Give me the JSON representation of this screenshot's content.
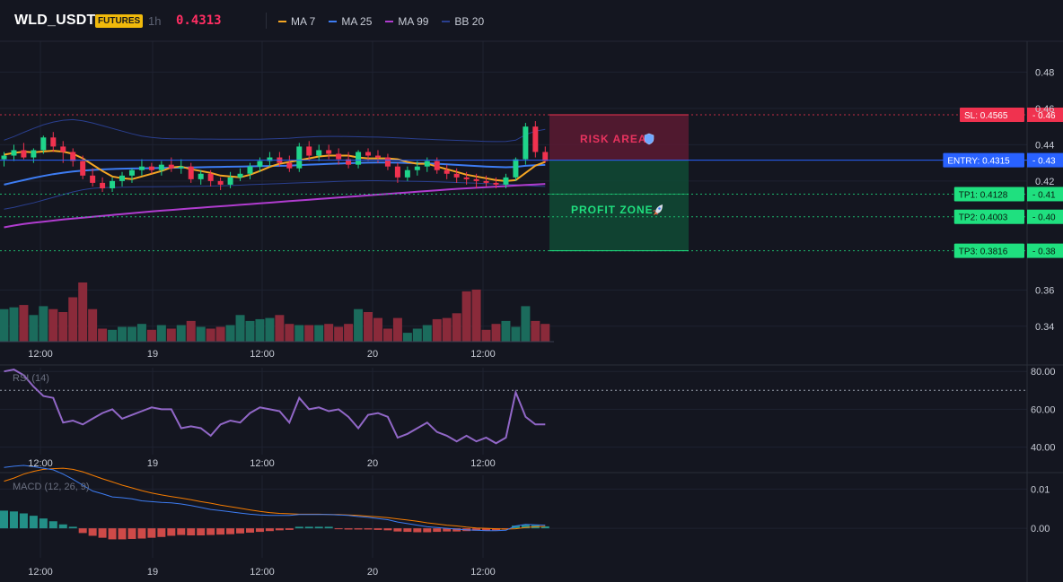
{
  "header": {
    "symbol": "WLD_USDT",
    "badge": "FUTURES",
    "timeframe": "1h",
    "last_price": "0.4313",
    "legend": [
      {
        "label": "MA 7",
        "color": "#f5a623"
      },
      {
        "label": "MA 25",
        "color": "#3d7cf2"
      },
      {
        "label": "MA 99",
        "color": "#b03ccf"
      },
      {
        "label": "BB 20",
        "color": "#2a3f8f"
      }
    ]
  },
  "colors": {
    "background": "#141620",
    "up": "#1fd48a",
    "down": "#f0324f",
    "vol_up": "#1b6b5c",
    "vol_down": "#8a2a3a",
    "rsi": "#9167c7",
    "macd": "#3d7cf2",
    "signal": "#f57c00",
    "hist_up": "#26a69a",
    "hist_down": "#ef5350"
  },
  "price_axis": {
    "ticks": [
      "0.48",
      "0.46",
      "0.44",
      "0.42",
      "0.36",
      "0.34"
    ],
    "range": [
      0.332,
      0.497
    ]
  },
  "time_axis": [
    "12:00",
    "19",
    "12:00",
    "20",
    "12:00"
  ],
  "zones": {
    "risk_label": "RISK AREA",
    "profit_label": "PROFIT ZONE",
    "risk_icon": "shield-icon",
    "profit_icon": "rocket-icon"
  },
  "levels": [
    {
      "id": "sl",
      "tag": "SL: 0.4565",
      "value": 0.4565,
      "axis": "0.46",
      "color": "#f0324f",
      "text": "#ffffff"
    },
    {
      "id": "entry",
      "tag": "ENTRY: 0.4315",
      "value": 0.4315,
      "axis": "0.43",
      "color": "#2962ff",
      "text": "#ffffff"
    },
    {
      "id": "tp1",
      "tag": "TP1: 0.4128",
      "value": 0.4128,
      "axis": "0.41",
      "color": "#1fe07f",
      "text": "#0a1a10"
    },
    {
      "id": "tp2",
      "tag": "TP2: 0.4003",
      "value": 0.4003,
      "axis": "0.40",
      "color": "#1fe07f",
      "text": "#0a1a10"
    },
    {
      "id": "tp3",
      "tag": "TP3: 0.3816",
      "value": 0.3816,
      "axis": "0.38",
      "color": "#1fe07f",
      "text": "#0a1a10"
    }
  ],
  "rsi": {
    "label": "RSI (14)",
    "ticks": [
      "80.00",
      "60.00",
      "40.00"
    ],
    "range": [
      36,
      82
    ],
    "overbought": 70,
    "values": [
      80,
      81,
      78,
      72,
      67,
      66,
      53,
      54,
      52,
      55,
      58,
      60,
      55,
      57,
      59,
      61,
      60,
      60,
      50,
      51,
      50,
      46,
      52,
      54,
      53,
      58,
      61,
      60,
      59,
      53,
      66,
      60,
      61,
      59,
      60,
      56,
      50,
      57,
      58,
      56,
      45,
      47,
      50,
      53,
      48,
      46,
      43,
      46,
      43,
      45,
      42,
      45,
      69,
      56,
      52,
      52
    ]
  },
  "macd": {
    "label": "MACD (12, 26, 9)",
    "ticks": [
      "0.01",
      "0.00"
    ],
    "range": [
      -0.0075,
      0.0135
    ],
    "macd": [
      0.0155,
      0.0158,
      0.016,
      0.0157,
      0.0153,
      0.0149,
      0.0138,
      0.0125,
      0.011,
      0.0095,
      0.0088,
      0.008,
      0.0078,
      0.0075,
      0.007,
      0.0068,
      0.0066,
      0.0065,
      0.0062,
      0.0058,
      0.0053,
      0.0048,
      0.0045,
      0.0042,
      0.0039,
      0.0036,
      0.0034,
      0.0033,
      0.0033,
      0.0033,
      0.0035,
      0.0035,
      0.0035,
      0.0035,
      0.0034,
      0.0033,
      0.003,
      0.0028,
      0.0025,
      0.0022,
      0.0016,
      0.0012,
      0.0008,
      0.0004,
      0.0002,
      0.0,
      -0.0002,
      -0.0004,
      -0.0005,
      -0.0006,
      -0.0006,
      -0.0005,
      0.0006,
      0.001,
      0.0009,
      0.0008
    ],
    "signal": [
      0.012,
      0.0128,
      0.0138,
      0.0145,
      0.015,
      0.0152,
      0.0153,
      0.015,
      0.0144,
      0.0135,
      0.0126,
      0.0118,
      0.011,
      0.0103,
      0.0096,
      0.009,
      0.0085,
      0.0081,
      0.0077,
      0.0073,
      0.0068,
      0.0064,
      0.0059,
      0.0055,
      0.0051,
      0.0047,
      0.0043,
      0.004,
      0.0038,
      0.0037,
      0.0036,
      0.0036,
      0.0036,
      0.0035,
      0.0035,
      0.0034,
      0.0033,
      0.0031,
      0.0029,
      0.0027,
      0.0024,
      0.0021,
      0.0018,
      0.0014,
      0.0011,
      0.0008,
      0.0006,
      0.0003,
      0.0001,
      0.0,
      -0.0001,
      -0.0002,
      -0.0001,
      0.0002,
      0.0004,
      0.0005
    ],
    "hist": [
      0.0045,
      0.0043,
      0.0038,
      0.0032,
      0.0025,
      0.0018,
      0.001,
      0.0004,
      -0.0012,
      -0.0019,
      -0.0024,
      -0.0028,
      -0.0028,
      -0.0027,
      -0.0026,
      -0.0024,
      -0.0022,
      -0.0019,
      -0.0017,
      -0.0018,
      -0.0018,
      -0.0017,
      -0.0016,
      -0.0015,
      -0.0013,
      -0.0011,
      -0.0009,
      -0.0007,
      -0.0005,
      -0.0004,
      0.0004,
      0.0004,
      0.0004,
      0.0004,
      -0.0002,
      -0.0003,
      -0.0003,
      -0.0003,
      -0.0004,
      -0.0005,
      -0.0008,
      -0.0009,
      -0.001,
      -0.001,
      -0.0009,
      -0.0008,
      -0.0008,
      -0.0007,
      -0.0006,
      -0.0006,
      -0.0005,
      -0.0003,
      0.0007,
      0.0009,
      0.0008,
      0.0005
    ]
  },
  "candles": [
    [
      0.432,
      0.436,
      0.428,
      0.434
    ],
    [
      0.434,
      0.44,
      0.431,
      0.437
    ],
    [
      0.437,
      0.441,
      0.432,
      0.433
    ],
    [
      0.433,
      0.438,
      0.43,
      0.437
    ],
    [
      0.437,
      0.445,
      0.435,
      0.444
    ],
    [
      0.444,
      0.447,
      0.436,
      0.439
    ],
    [
      0.439,
      0.442,
      0.43,
      0.436
    ],
    [
      0.436,
      0.438,
      0.428,
      0.431
    ],
    [
      0.431,
      0.434,
      0.421,
      0.423
    ],
    [
      0.423,
      0.427,
      0.417,
      0.419
    ],
    [
      0.419,
      0.422,
      0.414,
      0.416
    ],
    [
      0.416,
      0.422,
      0.414,
      0.42
    ],
    [
      0.42,
      0.425,
      0.417,
      0.423
    ],
    [
      0.423,
      0.427,
      0.419,
      0.426
    ],
    [
      0.426,
      0.432,
      0.423,
      0.428
    ],
    [
      0.428,
      0.43,
      0.424,
      0.426
    ],
    [
      0.426,
      0.431,
      0.423,
      0.429
    ],
    [
      0.429,
      0.433,
      0.425,
      0.427
    ],
    [
      0.427,
      0.432,
      0.424,
      0.428
    ],
    [
      0.428,
      0.43,
      0.419,
      0.421
    ],
    [
      0.421,
      0.426,
      0.418,
      0.424
    ],
    [
      0.424,
      0.426,
      0.417,
      0.42
    ],
    [
      0.42,
      0.422,
      0.415,
      0.418
    ],
    [
      0.418,
      0.425,
      0.416,
      0.422
    ],
    [
      0.422,
      0.427,
      0.42,
      0.424
    ],
    [
      0.424,
      0.43,
      0.421,
      0.428
    ],
    [
      0.428,
      0.433,
      0.425,
      0.431
    ],
    [
      0.431,
      0.436,
      0.428,
      0.433
    ],
    [
      0.433,
      0.436,
      0.428,
      0.43
    ],
    [
      0.43,
      0.434,
      0.425,
      0.427
    ],
    [
      0.427,
      0.441,
      0.425,
      0.439
    ],
    [
      0.439,
      0.442,
      0.431,
      0.434
    ],
    [
      0.434,
      0.44,
      0.431,
      0.437
    ],
    [
      0.437,
      0.44,
      0.432,
      0.435
    ],
    [
      0.435,
      0.438,
      0.429,
      0.432
    ],
    [
      0.432,
      0.436,
      0.427,
      0.429
    ],
    [
      0.429,
      0.437,
      0.427,
      0.436
    ],
    [
      0.436,
      0.438,
      0.431,
      0.434
    ],
    [
      0.434,
      0.437,
      0.43,
      0.433
    ],
    [
      0.433,
      0.435,
      0.426,
      0.428
    ],
    [
      0.428,
      0.43,
      0.419,
      0.422
    ],
    [
      0.422,
      0.428,
      0.42,
      0.426
    ],
    [
      0.426,
      0.431,
      0.423,
      0.428
    ],
    [
      0.428,
      0.433,
      0.425,
      0.431
    ],
    [
      0.431,
      0.433,
      0.424,
      0.426
    ],
    [
      0.426,
      0.429,
      0.421,
      0.424
    ],
    [
      0.424,
      0.427,
      0.419,
      0.422
    ],
    [
      0.422,
      0.425,
      0.418,
      0.421
    ],
    [
      0.421,
      0.424,
      0.416,
      0.42
    ],
    [
      0.42,
      0.423,
      0.417,
      0.419
    ],
    [
      0.419,
      0.422,
      0.416,
      0.418
    ],
    [
      0.418,
      0.424,
      0.416,
      0.422
    ],
    [
      0.422,
      0.433,
      0.42,
      0.432
    ],
    [
      0.432,
      0.452,
      0.429,
      0.45
    ],
    [
      0.45,
      0.453,
      0.433,
      0.436
    ],
    [
      0.436,
      0.439,
      0.43,
      0.431
    ]
  ],
  "volumes": [
    0.55,
    0.58,
    0.62,
    0.45,
    0.6,
    0.55,
    0.5,
    0.75,
    1.0,
    0.55,
    0.22,
    0.2,
    0.25,
    0.25,
    0.3,
    0.2,
    0.28,
    0.22,
    0.28,
    0.35,
    0.25,
    0.22,
    0.25,
    0.28,
    0.45,
    0.35,
    0.38,
    0.4,
    0.45,
    0.3,
    0.28,
    0.28,
    0.28,
    0.3,
    0.25,
    0.3,
    0.55,
    0.5,
    0.4,
    0.22,
    0.4,
    0.15,
    0.22,
    0.28,
    0.38,
    0.4,
    0.48,
    0.85,
    0.88,
    0.2,
    0.3,
    0.35,
    0.25,
    0.6,
    0.35,
    0.3
  ],
  "ma7": [
    0.4345,
    0.4355,
    0.4362,
    0.4358,
    0.4363,
    0.4367,
    0.4362,
    0.435,
    0.4325,
    0.429,
    0.4255,
    0.4225,
    0.4215,
    0.421,
    0.4225,
    0.424,
    0.4255,
    0.4275,
    0.428,
    0.4265,
    0.4255,
    0.4245,
    0.423,
    0.4225,
    0.422,
    0.4235,
    0.4255,
    0.4278,
    0.4295,
    0.4305,
    0.4315,
    0.4325,
    0.4335,
    0.434,
    0.434,
    0.434,
    0.433,
    0.4325,
    0.4325,
    0.4325,
    0.432,
    0.4305,
    0.4295,
    0.4295,
    0.428,
    0.4265,
    0.425,
    0.4235,
    0.4225,
    0.4215,
    0.4205,
    0.42,
    0.4205,
    0.4245,
    0.4285,
    0.4305
  ],
  "ma25": [
    0.418,
    0.4193,
    0.4205,
    0.4217,
    0.4228,
    0.4238,
    0.4246,
    0.4252,
    0.4257,
    0.4261,
    0.4264,
    0.4266,
    0.4268,
    0.4269,
    0.427,
    0.4271,
    0.4272,
    0.4273,
    0.4274,
    0.4275,
    0.4276,
    0.4277,
    0.4278,
    0.4279,
    0.428,
    0.4281,
    0.4282,
    0.4283,
    0.4284,
    0.4285,
    0.4288,
    0.429,
    0.4292,
    0.4294,
    0.4296,
    0.4298,
    0.43,
    0.4301,
    0.4302,
    0.4302,
    0.4301,
    0.4299,
    0.4298,
    0.4297,
    0.4295,
    0.4292,
    0.4289,
    0.4286,
    0.4283,
    0.428,
    0.4278,
    0.4276,
    0.4278,
    0.4284,
    0.4287,
    0.4289
  ],
  "ma99": [
    0.3945,
    0.3955,
    0.3963,
    0.397,
    0.3976,
    0.3982,
    0.3988,
    0.3993,
    0.3998,
    0.4003,
    0.4008,
    0.4013,
    0.4018,
    0.4023,
    0.4028,
    0.4033,
    0.4037,
    0.4041,
    0.4045,
    0.4049,
    0.4053,
    0.4057,
    0.4061,
    0.4065,
    0.4069,
    0.4073,
    0.4077,
    0.4081,
    0.4085,
    0.4089,
    0.4093,
    0.4097,
    0.4101,
    0.4105,
    0.4109,
    0.4113,
    0.4117,
    0.4121,
    0.4125,
    0.4129,
    0.4133,
    0.4137,
    0.4141,
    0.4145,
    0.4149,
    0.4153,
    0.4157,
    0.416,
    0.4163,
    0.4166,
    0.4169,
    0.4172,
    0.4175,
    0.4178,
    0.4181,
    0.4184
  ],
  "bb_upper": [
    0.4425,
    0.4445,
    0.4468,
    0.449,
    0.451,
    0.4525,
    0.4535,
    0.4538,
    0.4532,
    0.452,
    0.4505,
    0.449,
    0.4475,
    0.446,
    0.4448,
    0.444,
    0.4435,
    0.4433,
    0.4432,
    0.4432,
    0.4431,
    0.4431,
    0.443,
    0.443,
    0.443,
    0.443,
    0.443,
    0.4432,
    0.4434,
    0.4436,
    0.444,
    0.4443,
    0.4445,
    0.4446,
    0.4446,
    0.4445,
    0.4444,
    0.4443,
    0.4442,
    0.444,
    0.4438,
    0.4435,
    0.4432,
    0.443,
    0.4428,
    0.4426,
    0.4424,
    0.4422,
    0.442,
    0.4418,
    0.4417,
    0.4418,
    0.4425,
    0.4455,
    0.4475,
    0.4485
  ],
  "bb_lower": [
    0.4045,
    0.4055,
    0.4068,
    0.408,
    0.4095,
    0.411,
    0.4125,
    0.414,
    0.4152,
    0.416,
    0.4164,
    0.4165,
    0.4166,
    0.4167,
    0.4168,
    0.4168,
    0.4169,
    0.4169,
    0.417,
    0.417,
    0.4171,
    0.4172,
    0.4173,
    0.4175,
    0.4177,
    0.418,
    0.4182,
    0.4184,
    0.4186,
    0.4188,
    0.419,
    0.4192,
    0.4194,
    0.4196,
    0.4198,
    0.42,
    0.4201,
    0.4202,
    0.4202,
    0.4201,
    0.42,
    0.4199,
    0.4198,
    0.4197,
    0.4196,
    0.4194,
    0.4192,
    0.419,
    0.4188,
    0.4186,
    0.4184,
    0.4182,
    0.418,
    0.4175,
    0.4172,
    0.417
  ]
}
